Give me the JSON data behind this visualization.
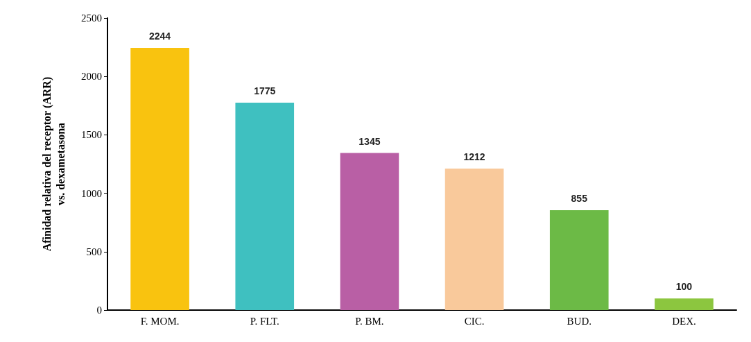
{
  "chart_data": {
    "type": "bar",
    "ylabel": "Afinidad relativa del receptor (ARR)\nvs. dexametasona",
    "categories": [
      "F. MOM.",
      "P. FLT.",
      "P. BM.",
      "CIC.",
      "BUD.",
      "DEX."
    ],
    "values": [
      2244,
      1775,
      1345,
      1212,
      855,
      100
    ],
    "colors": [
      "#f9c30f",
      "#3fc0c0",
      "#b95fa5",
      "#f9c99b",
      "#6cba46",
      "#8cc63f"
    ],
    "ylim": [
      0,
      2500
    ],
    "yticks": [
      0,
      500,
      1000,
      1500,
      2000,
      2500
    ],
    "grid": false,
    "data_labels": true
  }
}
